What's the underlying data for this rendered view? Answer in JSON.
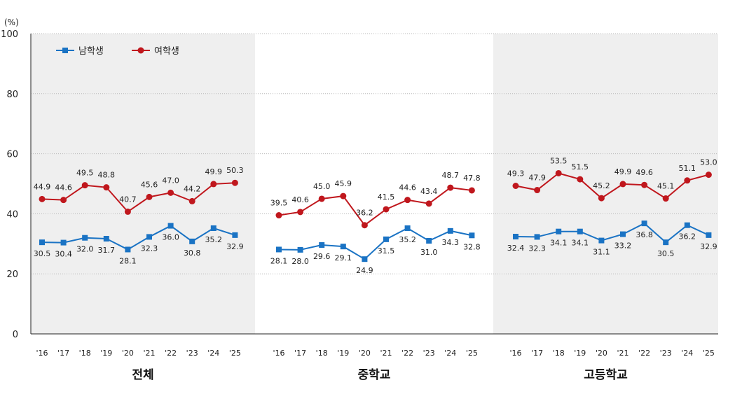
{
  "chart_data": {
    "type": "line",
    "unit_label": "(%)",
    "ylim": [
      0,
      100
    ],
    "yticks": [
      0,
      20,
      40,
      60,
      80,
      100
    ],
    "grid": true,
    "legend_position": "top-left",
    "categories": [
      "'16",
      "'17",
      "'18",
      "'19",
      "'20",
      "'21",
      "'22",
      "'23",
      "'24",
      "'25"
    ],
    "legend": [
      {
        "name": "남학생",
        "color": "#1a73c4",
        "marker": "square"
      },
      {
        "name": "여학생",
        "color": "#c0171d",
        "marker": "circle"
      }
    ],
    "groups": [
      {
        "title": "전체",
        "shaded": true,
        "series": [
          {
            "name": "남학생",
            "values": [
              30.5,
              30.4,
              32.0,
              31.7,
              28.1,
              32.3,
              36.0,
              30.8,
              35.2,
              32.9
            ]
          },
          {
            "name": "여학생",
            "values": [
              44.9,
              44.6,
              49.5,
              48.8,
              40.7,
              45.6,
              47.0,
              44.2,
              49.9,
              50.3
            ]
          }
        ]
      },
      {
        "title": "중학교",
        "shaded": false,
        "series": [
          {
            "name": "남학생",
            "values": [
              28.1,
              28.0,
              29.6,
              29.1,
              24.9,
              31.5,
              35.2,
              31.0,
              34.3,
              32.8
            ]
          },
          {
            "name": "여학생",
            "values": [
              39.5,
              40.6,
              45.0,
              45.9,
              36.2,
              41.5,
              44.6,
              43.4,
              48.7,
              47.8
            ]
          }
        ]
      },
      {
        "title": "고등학교",
        "shaded": true,
        "series": [
          {
            "name": "남학생",
            "values": [
              32.4,
              32.3,
              34.1,
              34.1,
              31.1,
              33.2,
              36.8,
              30.5,
              36.2,
              32.9
            ]
          },
          {
            "name": "여학생",
            "values": [
              49.3,
              47.9,
              53.5,
              51.5,
              45.2,
              49.9,
              49.6,
              45.1,
              51.1,
              53.0
            ]
          }
        ]
      }
    ]
  }
}
